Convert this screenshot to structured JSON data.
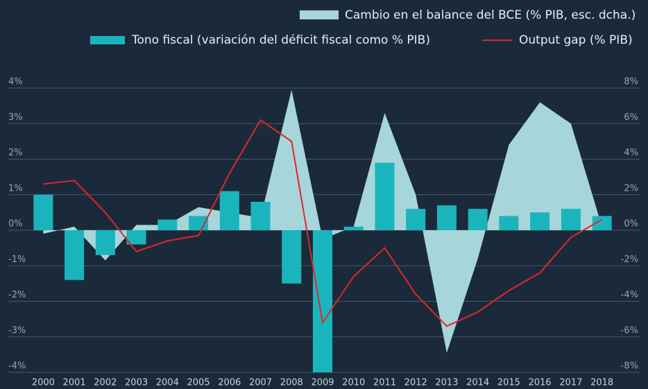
{
  "chart_data": {
    "type": "bar",
    "categories": [
      "2000",
      "2001",
      "2002",
      "2003",
      "2004",
      "2005",
      "2006",
      "2007",
      "2008",
      "2009",
      "2010",
      "2011",
      "2012",
      "2013",
      "2014",
      "2015",
      "2016",
      "2017",
      "2018"
    ],
    "series": [
      {
        "name": "Cambio en el balance del BCE (% PIB, esc. dcha.)",
        "type": "area",
        "axis": "y2",
        "color": "#a6d6da",
        "values": [
          -0.2,
          0.2,
          -1.7,
          0.3,
          0.3,
          1.3,
          1.0,
          0.7,
          7.9,
          -0.5,
          0.2,
          6.6,
          2.0,
          -6.9,
          -1.6,
          4.8,
          7.2,
          6.0,
          0.2
        ]
      },
      {
        "name": "Tono fiscal (variación del déficit fiscal como % PIB)",
        "type": "bar",
        "color": "#1ab5bc",
        "values": [
          1.0,
          -1.4,
          -0.7,
          -0.4,
          0.3,
          0.4,
          1.1,
          0.8,
          -1.5,
          -4.0,
          0.1,
          1.9,
          0.6,
          0.7,
          0.6,
          0.4,
          0.5,
          0.6,
          0.4
        ]
      },
      {
        "name": "Output gap (% PIB)",
        "type": "line",
        "color": "#e0262b",
        "values": [
          1.3,
          1.4,
          0.5,
          -0.6,
          -0.3,
          -0.15,
          1.6,
          3.1,
          2.5,
          -2.6,
          -1.3,
          -0.5,
          -1.8,
          -2.7,
          -2.3,
          -1.7,
          -1.2,
          -0.2,
          0.3
        ]
      }
    ],
    "ylim": [
      -4,
      4
    ],
    "yticks": [
      {
        "value": 4,
        "label": "4%"
      },
      {
        "value": 3,
        "label": "3%"
      },
      {
        "value": 2,
        "label": "2%"
      },
      {
        "value": 1,
        "label": "1%"
      },
      {
        "value": 0,
        "label": "0%"
      },
      {
        "value": -1,
        "label": "-1%"
      },
      {
        "value": -2,
        "label": "-2%"
      },
      {
        "value": -3,
        "label": "-3%"
      },
      {
        "value": -4,
        "label": "-4%"
      }
    ],
    "y2lim": [
      -8,
      8
    ],
    "y2ticks": [
      {
        "value": 8,
        "label": "8%"
      },
      {
        "value": 6,
        "label": "6%"
      },
      {
        "value": 4,
        "label": "4%"
      },
      {
        "value": 2,
        "label": "2%"
      },
      {
        "value": 0,
        "label": "0%"
      },
      {
        "value": -2,
        "label": "-2%"
      },
      {
        "value": -4,
        "label": "-4%"
      },
      {
        "value": -6,
        "label": "-6%"
      },
      {
        "value": -8,
        "label": "-8%"
      }
    ],
    "grid": true
  }
}
